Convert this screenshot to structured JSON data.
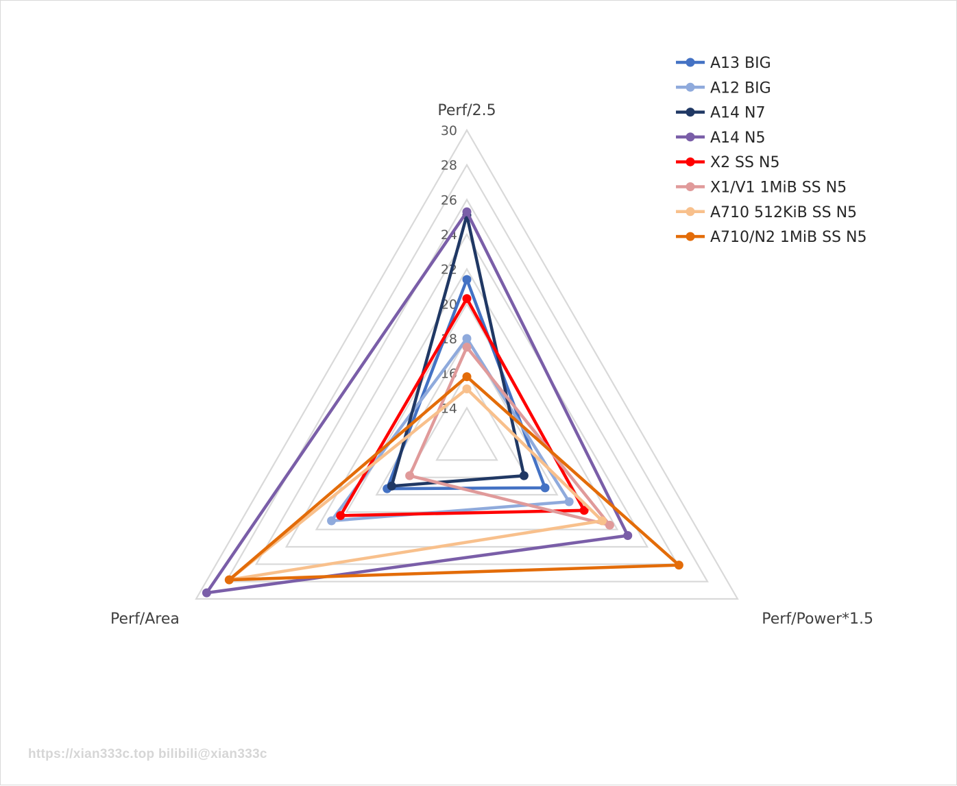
{
  "chart_data": {
    "type": "radar",
    "axes": [
      "Perf/2.5",
      "Perf/Power*1.5",
      "Perf/Area"
    ],
    "rlim": [
      12,
      30
    ],
    "ticks": [
      14,
      16,
      18,
      20,
      22,
      24,
      26,
      28,
      30
    ],
    "grid": true,
    "legend_position": "top-right",
    "series": [
      {
        "name": "A13 BIG",
        "color": "#4472c4",
        "values": [
          21.4,
          17.2,
          17.3
        ]
      },
      {
        "name": "A12 BIG",
        "color": "#8faadc",
        "values": [
          18.0,
          18.8,
          21.0
        ]
      },
      {
        "name": "A14 N7",
        "color": "#203864",
        "values": [
          25.1,
          15.8,
          17.0
        ]
      },
      {
        "name": "A14 N5",
        "color": "#7a5ea8",
        "values": [
          25.3,
          22.7,
          29.3
        ]
      },
      {
        "name": "X2 SS N5",
        "color": "#ff0000",
        "values": [
          20.3,
          19.8,
          20.4
        ]
      },
      {
        "name": "X1/V1 1MiB SS N5",
        "color": "#e09a9a",
        "values": [
          17.5,
          21.5,
          15.8
        ]
      },
      {
        "name": "A710 512KiB SS N5",
        "color": "#f8c08c",
        "values": [
          15.1,
          21.0,
          27.8
        ]
      },
      {
        "name": "A710/N2 1MiB SS N5",
        "color": "#e36c09",
        "values": [
          15.8,
          26.1,
          27.8
        ]
      }
    ]
  },
  "watermark": "https://xian333c.top bilibili@xian333c"
}
